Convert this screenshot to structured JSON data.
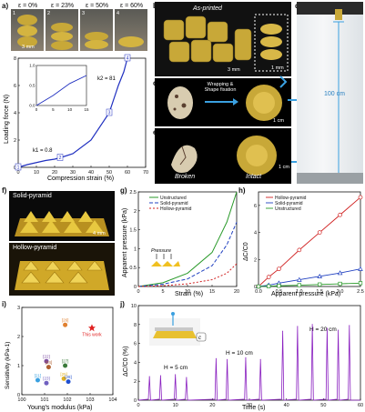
{
  "panels": {
    "a": "a)",
    "b": "b)",
    "c": "c)",
    "d": "d)",
    "e": "e)",
    "f": "f)",
    "g": "g)",
    "h": "h)",
    "i": "i)",
    "j": "j)"
  },
  "a": {
    "strains": [
      "ε = 0%",
      "ε = 23%",
      "ε = 50%",
      "ε = 60%"
    ],
    "photo_nums": [
      "1",
      "2",
      "3",
      "4"
    ],
    "scale": "3 mm",
    "ylabel": "Loading force (N)",
    "xlabel": "Compression strain (%)",
    "k1": "k1 = 0.8",
    "k2": "k2 = 81",
    "chart_data": {
      "type": "line",
      "x": [
        0,
        5,
        10,
        15,
        20,
        23,
        30,
        40,
        50,
        55,
        58,
        60
      ],
      "y": [
        0,
        0.2,
        0.35,
        0.5,
        0.6,
        0.7,
        1,
        2,
        4,
        6,
        7,
        8
      ],
      "xlim": [
        0,
        70
      ],
      "ylim": [
        0,
        8
      ],
      "xticks": [
        0,
        10,
        20,
        30,
        40,
        50,
        60,
        70
      ],
      "yticks": [
        0,
        2,
        4,
        6,
        8
      ],
      "inset": {
        "x": [
          0,
          5,
          10,
          15
        ],
        "y": [
          0,
          0.25,
          0.55,
          0.75
        ],
        "xticks": [
          0,
          5,
          10,
          15
        ],
        "yticks": [
          0.0,
          0.5,
          1.0
        ]
      }
    }
  },
  "b": {
    "title": "As-printed",
    "scale1": "3 mm",
    "scale2": "1 mm"
  },
  "c": {
    "caption": "Wrapping & Shape fixation",
    "scale": "1 cm"
  },
  "d": {
    "height": "100 cm"
  },
  "e": {
    "broken": "Broken",
    "intact": "Intact",
    "scale": "1 cm"
  },
  "f": {
    "solid": "Solid-pyramid",
    "hollow": "Hollow-pyramid",
    "scale": "4 mm"
  },
  "g": {
    "ylabel": "Apparent pressure (kPa)",
    "xlabel": "Strain (%)",
    "inset_label": "Pressure",
    "chart_data": {
      "type": "line",
      "xlim": [
        0,
        20
      ],
      "ylim": [
        0,
        2.5
      ],
      "xticks": [
        0,
        5,
        10,
        15,
        20
      ],
      "yticks": [
        0,
        0.5,
        1.0,
        1.5,
        2.0,
        2.5
      ],
      "series": [
        {
          "name": "Unstructured",
          "color": "#2a9a2a",
          "x": [
            0,
            5,
            10,
            15,
            18,
            20
          ],
          "y": [
            0,
            0.1,
            0.35,
            0.9,
            1.7,
            2.5
          ]
        },
        {
          "name": "Solid-pyramid",
          "color": "#2040c0",
          "x": [
            0,
            5,
            10,
            15,
            18,
            20
          ],
          "y": [
            0,
            0.06,
            0.2,
            0.55,
            1.1,
            1.7
          ]
        },
        {
          "name": "Hollow-pyramid",
          "color": "#d02020",
          "x": [
            0,
            5,
            10,
            15,
            18,
            20
          ],
          "y": [
            0,
            0.02,
            0.07,
            0.18,
            0.35,
            0.6
          ]
        }
      ]
    }
  },
  "h": {
    "ylabel": "ΔC/C0",
    "xlabel": "Apparent pressure (kPa)",
    "chart_data": {
      "type": "line",
      "xlim": [
        0,
        2.5
      ],
      "ylim": [
        0,
        7
      ],
      "xticks": [
        0,
        0.5,
        1.0,
        1.5,
        2.0,
        2.5
      ],
      "yticks": [
        0,
        2,
        4,
        6
      ],
      "series": [
        {
          "name": "Hollow-pyramid",
          "color": "#d02020",
          "marker": "circle",
          "x": [
            0,
            0.25,
            0.5,
            1.0,
            1.5,
            2.0,
            2.5
          ],
          "y": [
            0,
            0.7,
            1.3,
            2.7,
            4.0,
            5.3,
            6.6
          ]
        },
        {
          "name": "Solid-pyramid",
          "color": "#2040c0",
          "marker": "triangle",
          "x": [
            0,
            0.25,
            0.5,
            1.0,
            1.5,
            2.0,
            2.5
          ],
          "y": [
            0,
            0.1,
            0.25,
            0.5,
            0.75,
            1.0,
            1.3
          ]
        },
        {
          "name": "Unstructured",
          "color": "#2a9a2a",
          "marker": "square",
          "x": [
            0,
            0.25,
            0.5,
            1.0,
            1.5,
            2.0,
            2.5
          ],
          "y": [
            0,
            0.02,
            0.05,
            0.1,
            0.15,
            0.2,
            0.25
          ]
        }
      ]
    }
  },
  "i": {
    "ylabel": "Sensitivity (kPa-1)",
    "xlabel": "Young's modulus (kPa)",
    "this_work": "This work",
    "chart_data": {
      "type": "scatter",
      "xscale": "log",
      "xlim": [
        1,
        10000
      ],
      "ylim": [
        0,
        3
      ],
      "xticks": [
        "10^0",
        "10^1",
        "10^2",
        "10^3",
        "10^4"
      ],
      "yticks": [
        0,
        1,
        2,
        3
      ],
      "points": [
        {
          "label": "[26]",
          "x": 80,
          "y": 2.4,
          "color": "#e08030"
        },
        {
          "label": "This work",
          "x": 1200,
          "y": 2.3,
          "color": "#e02020"
        },
        {
          "label": "[22]",
          "x": 12,
          "y": 1.15,
          "color": "#7a4aa0"
        },
        {
          "label": "[24]",
          "x": 15,
          "y": 0.95,
          "color": "#b06030"
        },
        {
          "label": "[27]",
          "x": 80,
          "y": 1.0,
          "color": "#3a7a3a"
        },
        {
          "label": "[25]",
          "x": 70,
          "y": 0.55,
          "color": "#e0b020"
        },
        {
          "label": "[21]",
          "x": 5,
          "y": 0.5,
          "color": "#3aa0e0"
        },
        {
          "label": "[23]",
          "x": 12,
          "y": 0.4,
          "color": "#7060c0"
        },
        {
          "label": "[28]",
          "x": 110,
          "y": 0.45,
          "color": "#2050d0"
        }
      ]
    }
  },
  "j": {
    "ylabel": "ΔC/C0 (%)",
    "xlabel": "Time (s)",
    "h5": "H = 5 cm",
    "h10": "H = 10 cm",
    "h20": "H = 20 cm",
    "c": "c",
    "chart_data": {
      "type": "line",
      "xlim": [
        0,
        60
      ],
      "ylim": [
        0,
        10
      ],
      "xticks": [
        0,
        10,
        20,
        30,
        40,
        50,
        60
      ],
      "yticks": [
        0,
        2,
        4,
        6,
        8,
        10
      ],
      "peaks": [
        {
          "x": 3,
          "y": 2.5
        },
        {
          "x": 6,
          "y": 2.6
        },
        {
          "x": 10,
          "y": 2.7
        },
        {
          "x": 13,
          "y": 2.4
        },
        {
          "x": 21,
          "y": 4.4
        },
        {
          "x": 24,
          "y": 4.3
        },
        {
          "x": 29,
          "y": 4.5
        },
        {
          "x": 33,
          "y": 4.3
        },
        {
          "x": 39,
          "y": 7.3
        },
        {
          "x": 43,
          "y": 7.8
        },
        {
          "x": 47,
          "y": 8.0
        },
        {
          "x": 51,
          "y": 7.6
        },
        {
          "x": 54,
          "y": 7.4
        },
        {
          "x": 57,
          "y": 7.9
        }
      ]
    }
  }
}
